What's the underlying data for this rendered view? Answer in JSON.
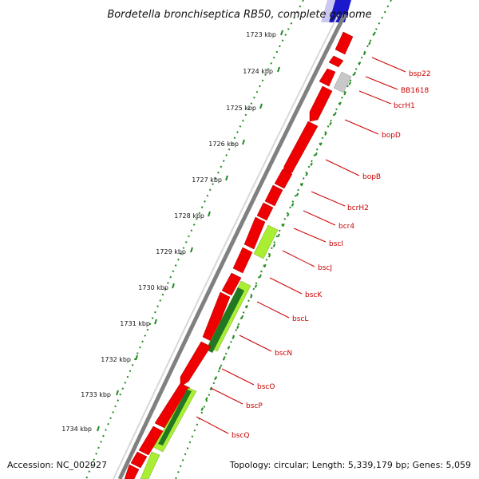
{
  "title": "Bordetella bronchiseptica RB50, complete genome",
  "footer": {
    "accession": "Accession: NC_002927",
    "summary": "Topology: circular; Length: 5,339,179 bp; Genes: 5,059"
  },
  "ticks": [
    {
      "label": "1723 kbp"
    },
    {
      "label": "1724 kbp"
    },
    {
      "label": "1725 kbp"
    },
    {
      "label": "1726 kbp"
    },
    {
      "label": "1727 kbp"
    },
    {
      "label": "1728 kbp"
    },
    {
      "label": "1729 kbp"
    },
    {
      "label": "1730 kbp"
    },
    {
      "label": "1731 kbp"
    },
    {
      "label": "1732 kbp"
    },
    {
      "label": "1733 kbp"
    },
    {
      "label": "1734 kbp"
    }
  ],
  "genes": [
    {
      "name": "bsp22"
    },
    {
      "name": "BB1618"
    },
    {
      "name": "bcrH1"
    },
    {
      "name": "bopD"
    },
    {
      "name": "bopB"
    },
    {
      "name": "bcrH2"
    },
    {
      "name": "bcr4"
    },
    {
      "name": "bscI"
    },
    {
      "name": "bscJ"
    },
    {
      "name": "bscK"
    },
    {
      "name": "bscL"
    },
    {
      "name": "bscN"
    },
    {
      "name": "bscO"
    },
    {
      "name": "bscP"
    },
    {
      "name": "bscQ"
    }
  ],
  "colors": {
    "gene": "#ee0000",
    "gene_edge": "#aa0000",
    "hypothetical": "#c8c8c8",
    "light_green": "#aaee33",
    "dark_green": "#227722",
    "backbone": "#808080",
    "dots": "#228B22",
    "label": "#cc0000",
    "top_blue": "#1a1acc"
  }
}
